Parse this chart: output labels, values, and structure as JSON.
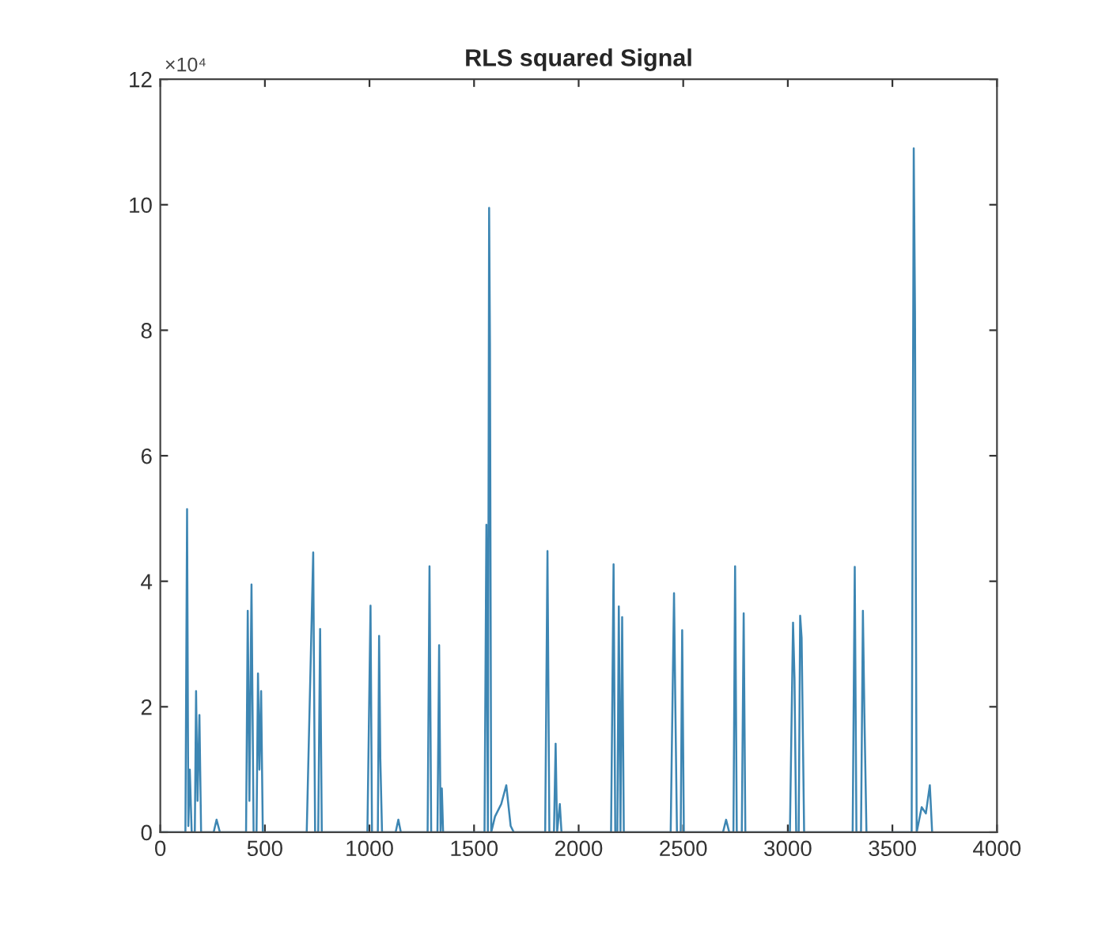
{
  "chart_data": {
    "type": "line",
    "title": "RLS squared Signal",
    "annotations": [
      "×10⁴"
    ],
    "x": [
      0,
      120,
      128,
      134,
      141,
      150,
      165,
      171,
      178,
      187,
      195,
      255,
      269,
      285,
      410,
      418,
      426,
      436,
      446,
      460,
      467,
      474,
      482,
      490,
      700,
      731,
      740,
      755,
      764,
      772,
      990,
      1005,
      1012,
      1040,
      1046,
      1052,
      1060,
      1125,
      1138,
      1150,
      1278,
      1287,
      1295,
      1325,
      1333,
      1340,
      1346,
      1352,
      1550,
      1559,
      1566,
      1572,
      1576,
      1582,
      1600,
      1630,
      1654,
      1675,
      1690,
      1840,
      1851,
      1860,
      1882,
      1890,
      1897,
      1910,
      1918,
      2155,
      2167,
      2175,
      2185,
      2192,
      2200,
      2208,
      2216,
      2440,
      2456,
      2462,
      2470,
      2488,
      2495,
      2503,
      2690,
      2705,
      2720,
      2740,
      2748,
      2756,
      2780,
      2789,
      2797,
      3010,
      3025,
      3032,
      3040,
      3052,
      3059,
      3066,
      3078,
      3310,
      3320,
      3328,
      3350,
      3359,
      3366,
      3376,
      3592,
      3602,
      3608,
      3616,
      3640,
      3660,
      3679,
      3690
    ],
    "series": [
      {
        "color": "#3d86b3",
        "values": [
          0,
          0,
          5.15,
          0.1,
          1.0,
          0,
          0,
          2.25,
          0.5,
          1.87,
          0,
          0,
          0.2,
          0,
          0,
          3.53,
          0.5,
          3.95,
          0,
          0,
          2.53,
          1.0,
          2.25,
          0,
          0,
          4.46,
          0,
          0,
          3.24,
          0,
          0,
          3.61,
          0,
          0,
          3.13,
          1.16,
          0,
          0,
          0.2,
          0,
          0,
          4.24,
          0,
          0,
          2.98,
          0,
          0.7,
          0,
          0,
          4.9,
          0,
          9.95,
          7.8,
          0,
          0.25,
          0.45,
          0.75,
          0.1,
          0,
          0,
          4.48,
          0,
          0,
          1.41,
          0,
          0.45,
          0,
          0,
          4.27,
          0,
          0,
          3.6,
          0,
          3.43,
          0,
          0,
          3.81,
          2.1,
          0,
          0,
          3.22,
          0,
          0,
          0.2,
          0,
          0,
          4.24,
          0,
          0,
          3.49,
          0,
          0,
          3.34,
          2.45,
          0,
          0,
          3.45,
          3.1,
          0,
          0,
          4.23,
          0,
          0,
          3.53,
          1.9,
          0,
          0,
          10.9,
          8.3,
          0,
          0.4,
          0.3,
          0.75,
          0
        ]
      }
    ],
    "xlim": [
      0,
      4000
    ],
    "xticks": [
      0,
      500,
      1000,
      1500,
      2000,
      2500,
      3000,
      3500,
      4000
    ],
    "ylim": [
      0,
      12
    ],
    "yticks": [
      0,
      2,
      4,
      6,
      8,
      10,
      12
    ],
    "grid": false,
    "line_style": "solid",
    "marker": "none"
  }
}
